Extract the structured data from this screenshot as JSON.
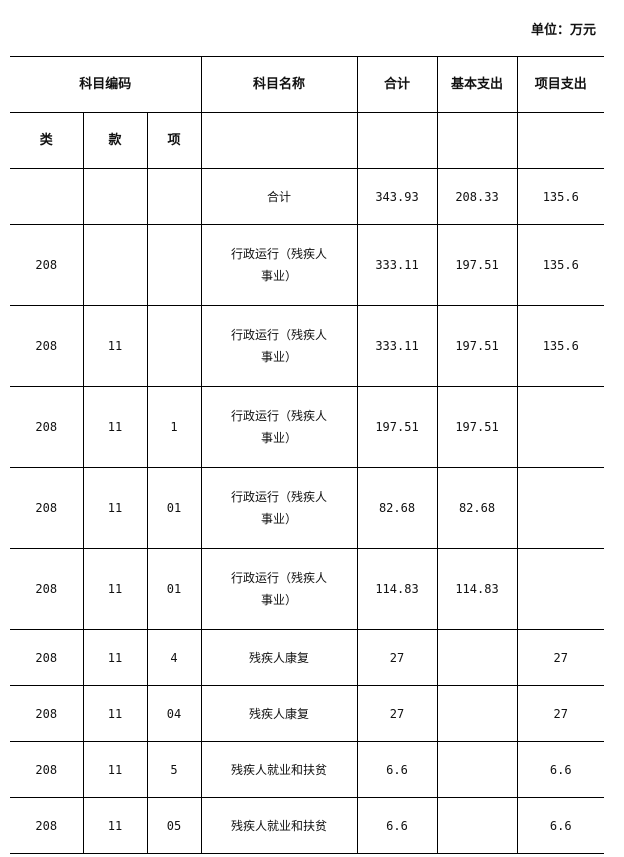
{
  "unit_label": "单位：万元",
  "header": {
    "code_group": "科目编码",
    "name": "科目名称",
    "total": "合计",
    "basic": "基本支出",
    "project": "项目支出",
    "class": "类",
    "section": "款",
    "item": "项"
  },
  "rows": [
    {
      "class": "",
      "section": "",
      "item": "",
      "name": "合计",
      "total": "343.93",
      "basic": "208.33",
      "project": "135.6"
    },
    {
      "class": "208",
      "section": "",
      "item": "",
      "name": "行政运行（残疾人事业）",
      "total": "333.11",
      "basic": "197.51",
      "project": "135.6"
    },
    {
      "class": "208",
      "section": "11",
      "item": "",
      "name": "行政运行（残疾人事业）",
      "total": "333.11",
      "basic": "197.51",
      "project": "135.6"
    },
    {
      "class": "208",
      "section": "11",
      "item": "1",
      "name": "行政运行（残疾人事业）",
      "total": "197.51",
      "basic": "197.51",
      "project": ""
    },
    {
      "class": "208",
      "section": "11",
      "item": "01",
      "name": "行政运行（残疾人事业）",
      "total": "82.68",
      "basic": "82.68",
      "project": ""
    },
    {
      "class": "208",
      "section": "11",
      "item": "01",
      "name": "行政运行（残疾人事业）",
      "total": "114.83",
      "basic": "114.83",
      "project": ""
    },
    {
      "class": "208",
      "section": "11",
      "item": "4",
      "name": "残疾人康复",
      "total": "27",
      "basic": "",
      "project": "27"
    },
    {
      "class": "208",
      "section": "11",
      "item": "04",
      "name": "残疾人康复",
      "total": "27",
      "basic": "",
      "project": "27"
    },
    {
      "class": "208",
      "section": "11",
      "item": "5",
      "name": "残疾人就业和扶贫",
      "total": "6.6",
      "basic": "",
      "project": "6.6"
    },
    {
      "class": "208",
      "section": "11",
      "item": "05",
      "name": "残疾人就业和扶贫",
      "total": "6.6",
      "basic": "",
      "project": "6.6"
    }
  ]
}
